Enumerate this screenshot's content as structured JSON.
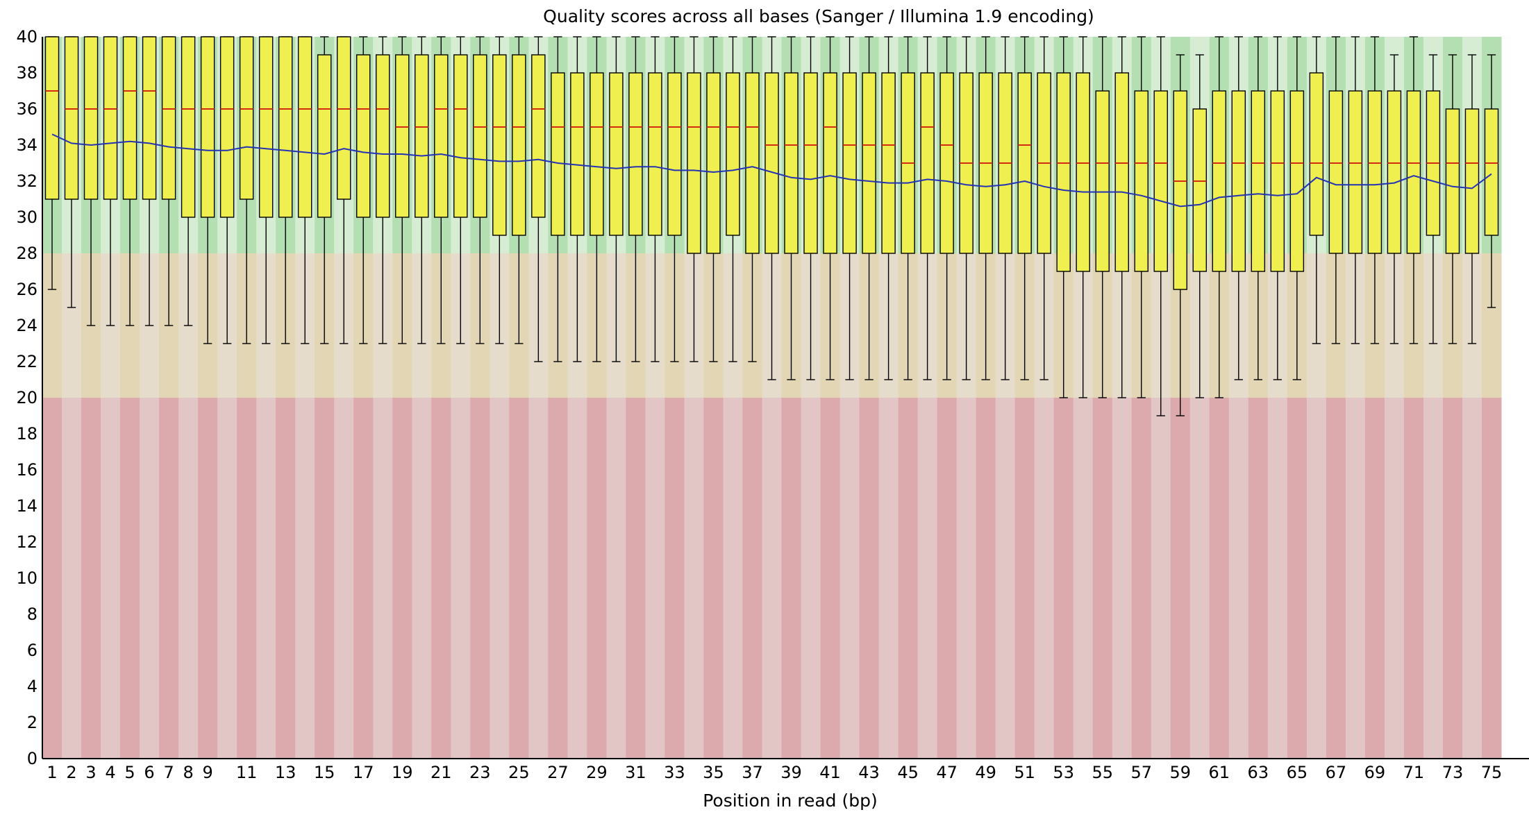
{
  "chart_data": {
    "type": "box",
    "title": "Quality scores across all bases (Sanger / Illumina 1.9 encoding)",
    "xlabel": "Position in read (bp)",
    "ylabel": "",
    "ylim": [
      0,
      40
    ],
    "yticks": [
      0,
      2,
      4,
      6,
      8,
      10,
      12,
      14,
      16,
      18,
      20,
      22,
      24,
      26,
      28,
      30,
      32,
      34,
      36,
      38,
      40
    ],
    "xtick_labels": [
      "1",
      "2",
      "3",
      "4",
      "5",
      "6",
      "7",
      "8",
      "9",
      "11",
      "13",
      "15",
      "17",
      "19",
      "21",
      "23",
      "25",
      "27",
      "29",
      "31",
      "33",
      "35",
      "37",
      "39",
      "41",
      "43",
      "45",
      "47",
      "49",
      "51",
      "53",
      "55",
      "57",
      "59",
      "61",
      "63",
      "65",
      "67",
      "69",
      "71",
      "73",
      "75"
    ],
    "quality_bands": [
      {
        "name": "good",
        "from": 28,
        "to": 40,
        "color_dark": "#b3dfb3",
        "color_light": "#d6edd3"
      },
      {
        "name": "reasonable",
        "from": 20,
        "to": 28,
        "color_dark": "#e2d6b5",
        "color_light": "#e6dccb"
      },
      {
        "name": "poor",
        "from": 0,
        "to": 20,
        "color_dark": "#dca9ac",
        "color_light": "#e2c5c5"
      }
    ],
    "box_color": "#efef4f",
    "median_color": "#d12c10",
    "mean_color": "#2433b4",
    "positions": [
      1,
      2,
      3,
      4,
      5,
      6,
      7,
      8,
      9,
      10,
      11,
      12,
      13,
      14,
      15,
      16,
      17,
      18,
      19,
      20,
      21,
      22,
      23,
      24,
      25,
      26,
      27,
      28,
      29,
      30,
      31,
      32,
      33,
      34,
      35,
      36,
      37,
      38,
      39,
      40,
      41,
      42,
      43,
      44,
      45,
      46,
      47,
      48,
      49,
      50,
      51,
      52,
      53,
      54,
      55,
      56,
      57,
      58,
      59,
      60,
      61,
      62,
      63,
      64,
      65,
      66,
      67,
      68,
      69,
      70,
      71,
      72,
      73,
      74,
      75
    ],
    "series": [
      {
        "name": "upper_whisker",
        "values": [
          40,
          40,
          40,
          40,
          40,
          40,
          40,
          40,
          40,
          40,
          40,
          40,
          40,
          40,
          40,
          40,
          40,
          40,
          40,
          40,
          40,
          40,
          40,
          40,
          40,
          40,
          40,
          40,
          40,
          40,
          40,
          40,
          40,
          40,
          40,
          40,
          40,
          40,
          40,
          40,
          40,
          40,
          40,
          40,
          40,
          40,
          40,
          40,
          40,
          40,
          40,
          40,
          40,
          40,
          40,
          40,
          40,
          40,
          39,
          39,
          40,
          40,
          40,
          40,
          40,
          40,
          40,
          40,
          40,
          39,
          40,
          39,
          39,
          39,
          39
        ]
      },
      {
        "name": "upper_quartile",
        "values": [
          40,
          40,
          40,
          40,
          40,
          40,
          40,
          40,
          40,
          40,
          40,
          40,
          40,
          40,
          39,
          40,
          39,
          39,
          39,
          39,
          39,
          39,
          39,
          39,
          39,
          39,
          38,
          38,
          38,
          38,
          38,
          38,
          38,
          38,
          38,
          38,
          38,
          38,
          38,
          38,
          38,
          38,
          38,
          38,
          38,
          38,
          38,
          38,
          38,
          38,
          38,
          38,
          38,
          38,
          37,
          38,
          37,
          37,
          37,
          36,
          37,
          37,
          37,
          37,
          37,
          38,
          37,
          37,
          37,
          37,
          37,
          37,
          36,
          36,
          36
        ]
      },
      {
        "name": "median",
        "values": [
          37,
          36,
          36,
          36,
          37,
          37,
          36,
          36,
          36,
          36,
          36,
          36,
          36,
          36,
          36,
          36,
          36,
          36,
          35,
          35,
          36,
          36,
          35,
          35,
          35,
          36,
          35,
          35,
          35,
          35,
          35,
          35,
          35,
          35,
          35,
          35,
          35,
          34,
          34,
          34,
          35,
          34,
          34,
          34,
          33,
          35,
          34,
          33,
          33,
          33,
          34,
          33,
          33,
          33,
          33,
          33,
          33,
          33,
          32,
          32,
          33,
          33,
          33,
          33,
          33,
          33,
          33,
          33,
          33,
          33,
          33,
          33,
          33,
          33,
          33
        ]
      },
      {
        "name": "lower_quartile",
        "values": [
          31,
          31,
          31,
          31,
          31,
          31,
          31,
          30,
          30,
          30,
          31,
          30,
          30,
          30,
          30,
          31,
          30,
          30,
          30,
          30,
          30,
          30,
          30,
          29,
          29,
          30,
          29,
          29,
          29,
          29,
          29,
          29,
          29,
          28,
          28,
          29,
          28,
          28,
          28,
          28,
          28,
          28,
          28,
          28,
          28,
          28,
          28,
          28,
          28,
          28,
          28,
          28,
          27,
          27,
          27,
          27,
          27,
          27,
          26,
          27,
          27,
          27,
          27,
          27,
          27,
          29,
          28,
          28,
          28,
          28,
          28,
          29,
          28,
          28,
          29
        ]
      },
      {
        "name": "lower_whisker",
        "values": [
          26,
          25,
          24,
          24,
          24,
          24,
          24,
          24,
          23,
          23,
          23,
          23,
          23,
          23,
          23,
          23,
          23,
          23,
          23,
          23,
          23,
          23,
          23,
          23,
          23,
          22,
          22,
          22,
          22,
          22,
          22,
          22,
          22,
          22,
          22,
          22,
          22,
          21,
          21,
          21,
          21,
          21,
          21,
          21,
          21,
          21,
          21,
          21,
          21,
          21,
          21,
          21,
          20,
          20,
          20,
          20,
          20,
          19,
          19,
          20,
          20,
          21,
          21,
          21,
          21,
          23,
          23,
          23,
          23,
          23,
          23,
          23,
          23,
          23,
          25
        ]
      },
      {
        "name": "mean",
        "values": [
          34.6,
          34.1,
          34.0,
          34.1,
          34.2,
          34.1,
          33.9,
          33.8,
          33.7,
          33.7,
          33.9,
          33.8,
          33.7,
          33.6,
          33.5,
          33.8,
          33.6,
          33.5,
          33.5,
          33.4,
          33.5,
          33.3,
          33.2,
          33.1,
          33.1,
          33.2,
          33.0,
          32.9,
          32.8,
          32.7,
          32.8,
          32.8,
          32.6,
          32.6,
          32.5,
          32.6,
          32.8,
          32.5,
          32.2,
          32.1,
          32.3,
          32.1,
          32.0,
          31.9,
          31.9,
          32.1,
          32.0,
          31.8,
          31.7,
          31.8,
          32.0,
          31.7,
          31.5,
          31.4,
          31.4,
          31.4,
          31.2,
          30.9,
          30.6,
          30.7,
          31.1,
          31.2,
          31.3,
          31.2,
          31.3,
          32.2,
          31.8,
          31.8,
          31.8,
          31.9,
          32.3,
          32.0,
          31.7,
          31.6,
          32.4
        ]
      }
    ]
  }
}
